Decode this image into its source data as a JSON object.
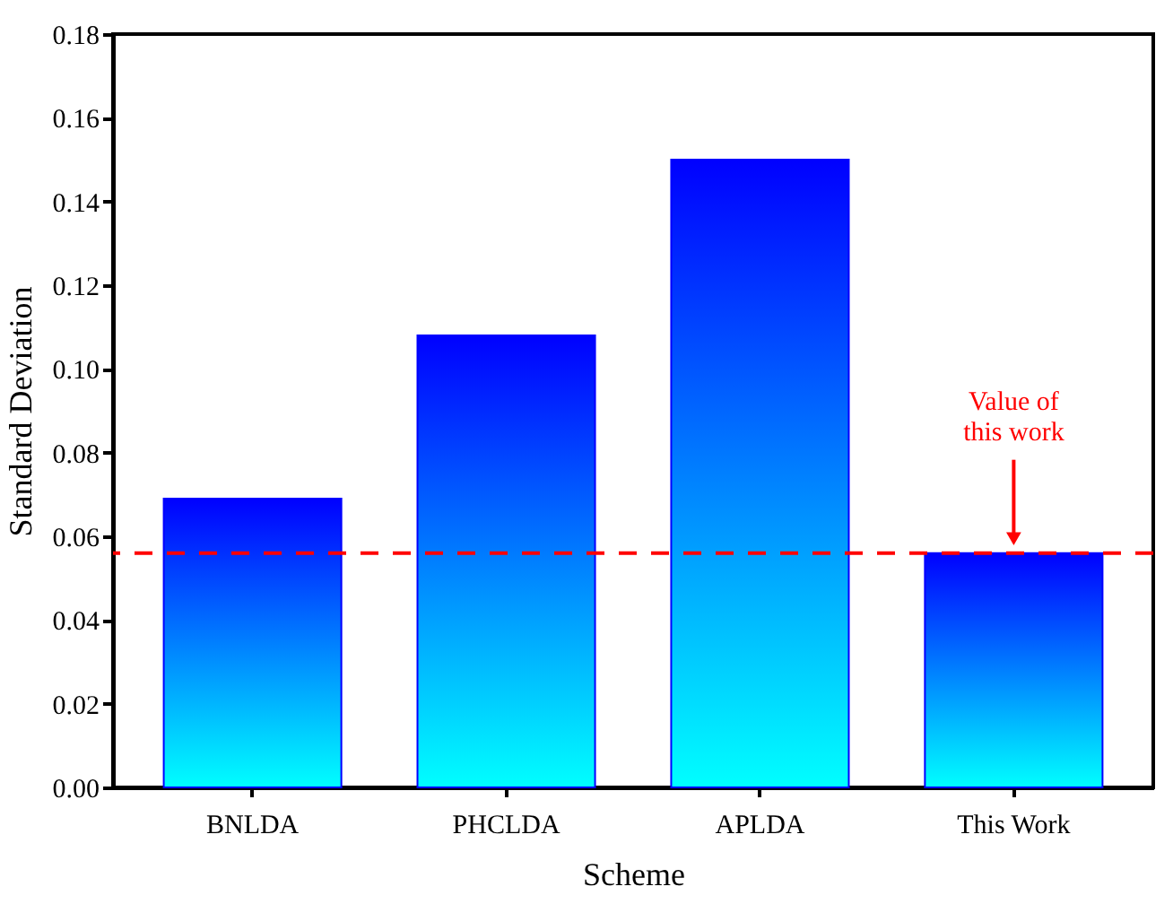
{
  "chart_data": {
    "type": "bar",
    "xlabel": "Scheme",
    "ylabel": "Standard Deviation",
    "categories": [
      "BNLDA",
      "PHCLDA",
      "APLDA",
      "This Work"
    ],
    "values": [
      0.069,
      0.108,
      0.15,
      0.056
    ],
    "color": "#0000ff",
    "ylim": [
      0,
      0.18
    ],
    "yticks": [
      {
        "value": 0,
        "label": "0.00"
      },
      {
        "value": 0.02,
        "label": "0.02"
      },
      {
        "value": 0.04,
        "label": "0.04"
      },
      {
        "value": 0.06,
        "label": "0.06"
      },
      {
        "value": 0.08,
        "label": "0.08"
      },
      {
        "value": 0.1,
        "label": "0.10"
      },
      {
        "value": 0.12,
        "label": "0.12"
      },
      {
        "value": 0.14,
        "label": "0.14"
      },
      {
        "value": 0.16,
        "label": "0.16"
      },
      {
        "value": 0.18,
        "label": "0.18"
      }
    ],
    "ref_lines": [
      {
        "axis": "y",
        "value": 0.056,
        "color": "#ff0000",
        "line_style": "dashed"
      }
    ],
    "annotations": [
      "Value of\nthis work"
    ],
    "grid": false
  }
}
